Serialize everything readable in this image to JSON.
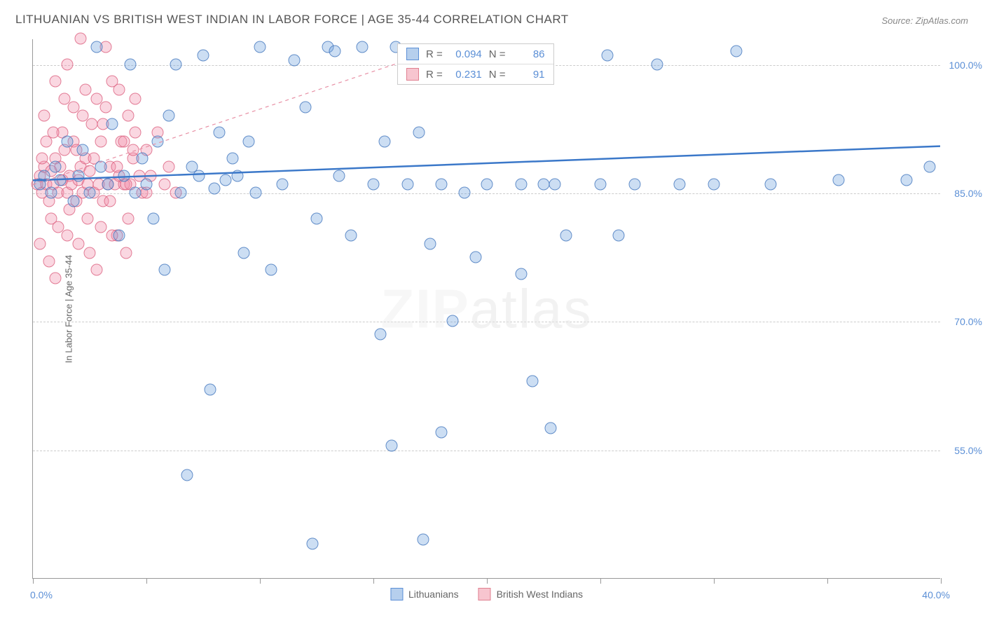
{
  "title": "LITHUANIAN VS BRITISH WEST INDIAN IN LABOR FORCE | AGE 35-44 CORRELATION CHART",
  "source": "Source: ZipAtlas.com",
  "watermark_bold": "ZIP",
  "watermark_light": "atlas",
  "axis": {
    "y_title": "In Labor Force | Age 35-44",
    "x_min_label": "0.0%",
    "x_max_label": "40.0%",
    "x_min": 0,
    "x_max": 40,
    "y_min": 40,
    "y_max": 103,
    "x_ticks": [
      0,
      5,
      10,
      15,
      20,
      25,
      30,
      35,
      40
    ],
    "y_ticks": [
      {
        "v": 55,
        "label": "55.0%"
      },
      {
        "v": 70,
        "label": "70.0%"
      },
      {
        "v": 85,
        "label": "85.0%"
      },
      {
        "v": 100,
        "label": "100.0%"
      }
    ]
  },
  "grid_color": "#cccccc",
  "series_blue": {
    "label": "Lithuanians",
    "color_fill": "rgba(110,160,220,0.35)",
    "color_stroke": "#5b8fd6",
    "R_label": "R =",
    "R": "0.094",
    "N_label": "N =",
    "N": "86",
    "trend": {
      "x1": 0,
      "y1": 86.5,
      "x2": 40,
      "y2": 90.5,
      "stroke": "#3b78c9",
      "width": 2.5,
      "dash": "none"
    }
  },
  "series_pink": {
    "label": "British West Indians",
    "color_fill": "rgba(240,140,170,0.35)",
    "color_stroke": "#e08090",
    "R_label": "R =",
    "R": "0.231",
    "N_label": "N =",
    "N": "91",
    "trend": {
      "x1": 0,
      "y1": 86,
      "x2": 17,
      "y2": 101,
      "stroke": "#e890a5",
      "width": 1.2,
      "dash": "5,5"
    }
  },
  "points_blue": [
    [
      0.3,
      86
    ],
    [
      0.5,
      87
    ],
    [
      0.8,
      85
    ],
    [
      1.0,
      88
    ],
    [
      1.2,
      86.5
    ],
    [
      1.5,
      91
    ],
    [
      1.8,
      84
    ],
    [
      2.0,
      87
    ],
    [
      2.2,
      90
    ],
    [
      2.5,
      85
    ],
    [
      2.8,
      102
    ],
    [
      3.0,
      88
    ],
    [
      3.3,
      86
    ],
    [
      3.5,
      93
    ],
    [
      3.8,
      80
    ],
    [
      4.0,
      87
    ],
    [
      4.3,
      100
    ],
    [
      4.5,
      85
    ],
    [
      4.8,
      89
    ],
    [
      5.0,
      86
    ],
    [
      5.3,
      82
    ],
    [
      5.5,
      91
    ],
    [
      5.8,
      76
    ],
    [
      6.0,
      94
    ],
    [
      6.3,
      100
    ],
    [
      6.5,
      85
    ],
    [
      6.8,
      52
    ],
    [
      7.0,
      88
    ],
    [
      7.3,
      87
    ],
    [
      7.5,
      101
    ],
    [
      7.8,
      62
    ],
    [
      8.0,
      85.5
    ],
    [
      8.2,
      92
    ],
    [
      8.5,
      86.5
    ],
    [
      8.8,
      89
    ],
    [
      9.0,
      87
    ],
    [
      9.3,
      78
    ],
    [
      9.5,
      91
    ],
    [
      9.8,
      85
    ],
    [
      10.0,
      102
    ],
    [
      10.5,
      76
    ],
    [
      11.0,
      86
    ],
    [
      11.5,
      100.5
    ],
    [
      12.0,
      95
    ],
    [
      12.5,
      82
    ],
    [
      13.0,
      102
    ],
    [
      13.3,
      101.5
    ],
    [
      13.5,
      87
    ],
    [
      14.0,
      80
    ],
    [
      14.5,
      102
    ],
    [
      15.0,
      86
    ],
    [
      15.5,
      91
    ],
    [
      12.3,
      44
    ],
    [
      16.0,
      102
    ],
    [
      15.3,
      68.5
    ],
    [
      16.5,
      86
    ],
    [
      15.8,
      55.5
    ],
    [
      17.0,
      92
    ],
    [
      17.5,
      79
    ],
    [
      18.0,
      86
    ],
    [
      18.0,
      57
    ],
    [
      18.5,
      70
    ],
    [
      19.0,
      85
    ],
    [
      19.5,
      77.5
    ],
    [
      20.0,
      86
    ],
    [
      17.2,
      44.5
    ],
    [
      21.0,
      101
    ],
    [
      21.5,
      86
    ],
    [
      21.5,
      75.5
    ],
    [
      22.0,
      63
    ],
    [
      22.5,
      86
    ],
    [
      22.8,
      57.5
    ],
    [
      23.0,
      86
    ],
    [
      23.5,
      80
    ],
    [
      25.0,
      86
    ],
    [
      25.3,
      101
    ],
    [
      25.8,
      80
    ],
    [
      26.5,
      86
    ],
    [
      27.5,
      100
    ],
    [
      28.5,
      86
    ],
    [
      30.0,
      86
    ],
    [
      31.0,
      101.5
    ],
    [
      32.5,
      86
    ],
    [
      35.5,
      86.5
    ],
    [
      38.5,
      86.5
    ],
    [
      39.5,
      88
    ]
  ],
  "points_pink": [
    [
      0.2,
      86
    ],
    [
      0.3,
      87
    ],
    [
      0.4,
      85
    ],
    [
      0.5,
      88
    ],
    [
      0.6,
      86
    ],
    [
      0.7,
      84
    ],
    [
      0.8,
      87.5
    ],
    [
      0.9,
      86
    ],
    [
      1.0,
      89
    ],
    [
      1.1,
      85
    ],
    [
      1.2,
      88
    ],
    [
      1.3,
      86.5
    ],
    [
      1.4,
      90
    ],
    [
      1.5,
      85
    ],
    [
      1.6,
      87
    ],
    [
      1.7,
      86
    ],
    [
      1.8,
      91
    ],
    [
      1.9,
      84
    ],
    [
      2.0,
      86.5
    ],
    [
      2.1,
      88
    ],
    [
      2.2,
      85
    ],
    [
      2.3,
      89
    ],
    [
      2.4,
      86
    ],
    [
      2.5,
      87.5
    ],
    [
      2.6,
      93
    ],
    [
      2.7,
      85
    ],
    [
      2.8,
      96
    ],
    [
      2.9,
      86
    ],
    [
      3.0,
      91
    ],
    [
      3.1,
      84
    ],
    [
      3.2,
      95
    ],
    [
      3.3,
      86
    ],
    [
      3.4,
      88
    ],
    [
      3.5,
      98
    ],
    [
      3.6,
      86
    ],
    [
      3.7,
      80
    ],
    [
      3.8,
      87
    ],
    [
      3.9,
      91
    ],
    [
      4.0,
      86
    ],
    [
      4.1,
      78
    ],
    [
      4.2,
      94
    ],
    [
      4.3,
      86
    ],
    [
      4.4,
      89
    ],
    [
      4.5,
      92
    ],
    [
      1.5,
      80
    ],
    [
      1.8,
      95
    ],
    [
      2.0,
      79
    ],
    [
      2.3,
      97
    ],
    [
      2.5,
      78
    ],
    [
      2.1,
      103
    ],
    [
      2.8,
      76
    ],
    [
      3.0,
      81
    ],
    [
      3.2,
      102
    ],
    [
      3.5,
      80
    ],
    [
      3.8,
      97
    ],
    [
      4.0,
      91
    ],
    [
      4.2,
      82
    ],
    [
      4.5,
      96
    ],
    [
      4.8,
      85
    ],
    [
      5.0,
      90
    ],
    [
      5.2,
      87
    ],
    [
      5.5,
      92
    ],
    [
      5.8,
      86
    ],
    [
      6.0,
      88
    ],
    [
      6.3,
      85
    ],
    [
      1.0,
      75
    ],
    [
      1.3,
      92
    ],
    [
      1.0,
      98
    ],
    [
      0.8,
      82
    ],
    [
      1.5,
      100
    ],
    [
      0.6,
      91
    ],
    [
      0.4,
      89
    ],
    [
      0.3,
      79
    ],
    [
      0.5,
      94
    ],
    [
      0.7,
      77
    ],
    [
      0.9,
      92
    ],
    [
      1.1,
      81
    ],
    [
      1.4,
      96
    ],
    [
      1.6,
      83
    ],
    [
      1.9,
      90
    ],
    [
      2.2,
      94
    ],
    [
      2.4,
      82
    ],
    [
      2.7,
      89
    ],
    [
      3.1,
      93
    ],
    [
      3.4,
      84
    ],
    [
      3.7,
      88
    ],
    [
      4.1,
      86
    ],
    [
      4.4,
      90
    ],
    [
      4.7,
      87
    ],
    [
      5.0,
      85
    ],
    [
      16.8,
      101
    ]
  ]
}
